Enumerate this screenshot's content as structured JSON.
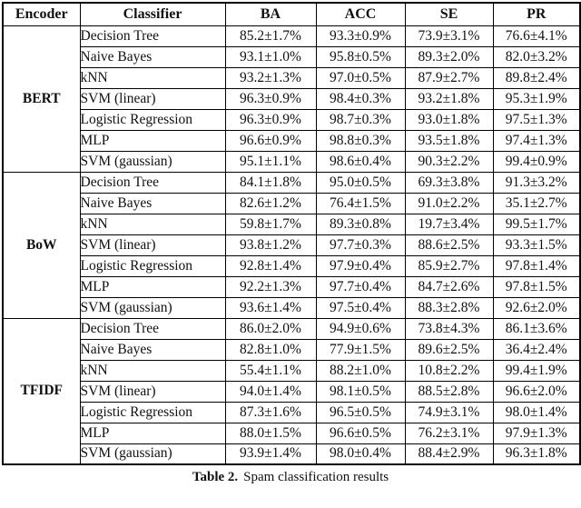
{
  "table": {
    "headers": [
      "Encoder",
      "Classifier",
      "BA",
      "ACC",
      "SE",
      "PR"
    ],
    "groups": [
      {
        "encoder": "BERT",
        "rows": [
          {
            "classifier": "Decision Tree",
            "ba": "85.2±1.7%",
            "acc": "93.3±0.9%",
            "se": "73.9±3.1%",
            "pr": "76.6±4.1%"
          },
          {
            "classifier": "Naive Bayes",
            "ba": "93.1±1.0%",
            "acc": "95.8±0.5%",
            "se": "89.3±2.0%",
            "pr": "82.0±3.2%"
          },
          {
            "classifier": "kNN",
            "ba": "93.2±1.3%",
            "acc": "97.0±0.5%",
            "se": "87.9±2.7%",
            "pr": "89.8±2.4%"
          },
          {
            "classifier": "SVM (linear)",
            "ba": "96.3±0.9%",
            "acc": "98.4±0.3%",
            "se": "93.2±1.8%",
            "pr": "95.3±1.9%"
          },
          {
            "classifier": "Logistic Regression",
            "ba": "96.3±0.9%",
            "acc": "98.7±0.3%",
            "se": "93.0±1.8%",
            "pr": "97.5±1.3%"
          },
          {
            "classifier": "MLP",
            "ba": "96.6±0.9%",
            "acc": "98.8±0.3%",
            "se": "93.5±1.8%",
            "pr": "97.4±1.3%"
          },
          {
            "classifier": "SVM (gaussian)",
            "ba": "95.1±1.1%",
            "acc": "98.6±0.4%",
            "se": "90.3±2.2%",
            "pr": "99.4±0.9%"
          }
        ]
      },
      {
        "encoder": "BoW",
        "rows": [
          {
            "classifier": "Decision Tree",
            "ba": "84.1±1.8%",
            "acc": "95.0±0.5%",
            "se": "69.3±3.8%",
            "pr": "91.3±3.2%"
          },
          {
            "classifier": "Naive Bayes",
            "ba": "82.6±1.2%",
            "acc": "76.4±1.5%",
            "se": "91.0±2.2%",
            "pr": "35.1±2.7%"
          },
          {
            "classifier": "kNN",
            "ba": "59.8±1.7%",
            "acc": "89.3±0.8%",
            "se": "19.7±3.4%",
            "pr": "99.5±1.7%"
          },
          {
            "classifier": "SVM (linear)",
            "ba": "93.8±1.2%",
            "acc": "97.7±0.3%",
            "se": "88.6±2.5%",
            "pr": "93.3±1.5%"
          },
          {
            "classifier": "Logistic Regression",
            "ba": "92.8±1.4%",
            "acc": "97.9±0.4%",
            "se": "85.9±2.7%",
            "pr": "97.8±1.4%"
          },
          {
            "classifier": "MLP",
            "ba": "92.2±1.3%",
            "acc": "97.7±0.4%",
            "se": "84.7±2.6%",
            "pr": "97.8±1.5%"
          },
          {
            "classifier": "SVM (gaussian)",
            "ba": "93.6±1.4%",
            "acc": "97.5±0.4%",
            "se": "88.3±2.8%",
            "pr": "92.6±2.0%"
          }
        ]
      },
      {
        "encoder": "TFIDF",
        "rows": [
          {
            "classifier": "Decision Tree",
            "ba": "86.0±2.0%",
            "acc": "94.9±0.6%",
            "se": "73.8±4.3%",
            "pr": "86.1±3.6%"
          },
          {
            "classifier": "Naive Bayes",
            "ba": "82.8±1.0%",
            "acc": "77.9±1.5%",
            "se": "89.6±2.5%",
            "pr": "36.4±2.4%"
          },
          {
            "classifier": "kNN",
            "ba": "55.4±1.1%",
            "acc": "88.2±1.0%",
            "se": "10.8±2.2%",
            "pr": "99.4±1.9%"
          },
          {
            "classifier": "SVM (linear)",
            "ba": "94.0±1.4%",
            "acc": "98.1±0.5%",
            "se": "88.5±2.8%",
            "pr": "96.6±2.0%"
          },
          {
            "classifier": "Logistic Regression",
            "ba": "87.3±1.6%",
            "acc": "96.5±0.5%",
            "se": "74.9±3.1%",
            "pr": "98.0±1.4%"
          },
          {
            "classifier": "MLP",
            "ba": "88.0±1.5%",
            "acc": "96.6±0.5%",
            "se": "76.2±3.1%",
            "pr": "97.9±1.3%"
          },
          {
            "classifier": "SVM (gaussian)",
            "ba": "93.9±1.4%",
            "acc": "98.0±0.4%",
            "se": "88.4±2.9%",
            "pr": "96.3±1.8%"
          }
        ]
      }
    ]
  },
  "caption": {
    "label": "Table 2.",
    "text": "Spam classification results"
  }
}
